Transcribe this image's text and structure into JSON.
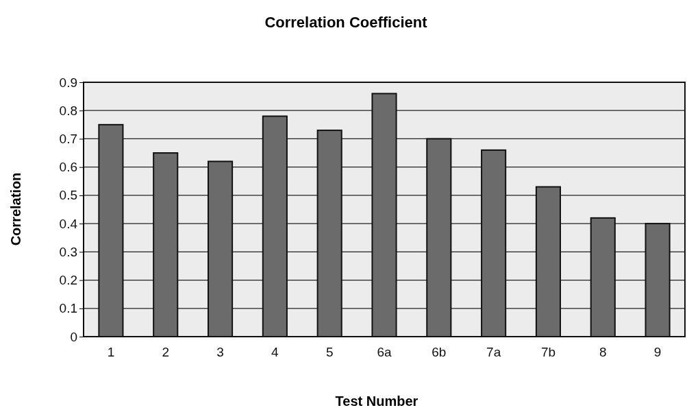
{
  "chart_data": {
    "type": "bar",
    "title": "Correlation Coefficient",
    "xlabel": "Test Number",
    "ylabel": "Correlation",
    "categories": [
      "1",
      "2",
      "3",
      "4",
      "5",
      "6a",
      "6b",
      "7a",
      "7b",
      "8",
      "9"
    ],
    "values": [
      0.75,
      0.65,
      0.62,
      0.78,
      0.73,
      0.86,
      0.7,
      0.66,
      0.53,
      0.42,
      0.4
    ],
    "color": "#6b6b6b",
    "ylim": [
      0,
      0.9
    ],
    "yticks": [
      0,
      0.1,
      0.2,
      0.3,
      0.4,
      0.5,
      0.6,
      0.7,
      0.8,
      0.9
    ],
    "grid": "y"
  }
}
